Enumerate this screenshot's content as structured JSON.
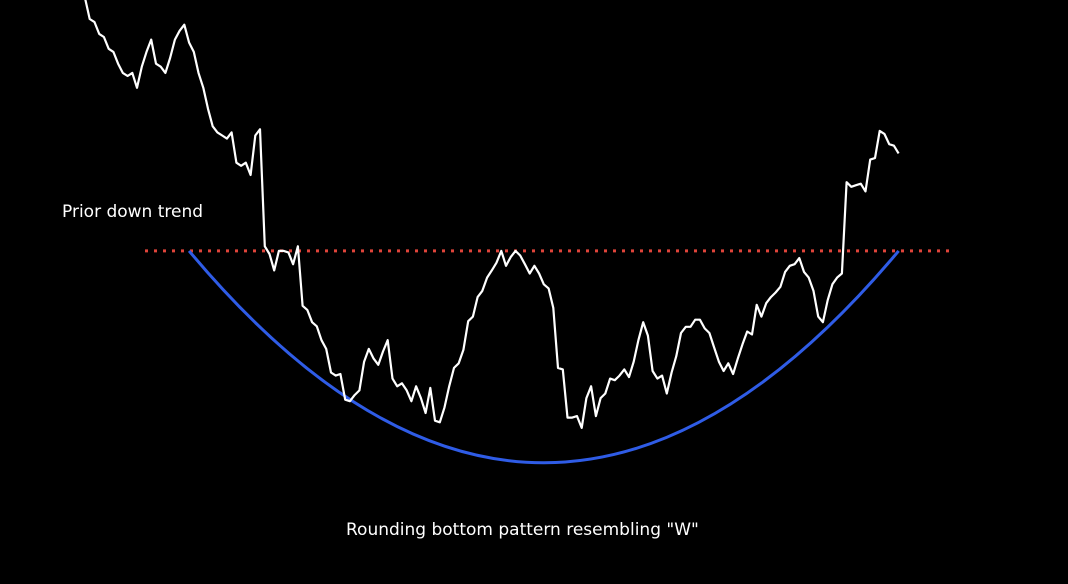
{
  "chart_data": {
    "type": "line",
    "title": "",
    "xlabel": "",
    "ylabel": "",
    "xlim": [
      0,
      178
    ],
    "ylim": [
      0,
      100
    ],
    "grid": false,
    "legend": "none",
    "colors": {
      "background": "#000000",
      "price": "#ffffff",
      "resistance": "#e0443a",
      "rounding_curve": "#2f5ce6",
      "text": "#ffffff"
    },
    "series": [
      {
        "values": [
          100.0,
          95.9,
          95.3,
          93.0,
          92.4,
          90.1,
          89.5,
          87.2,
          85.4,
          84.8,
          85.4,
          82.5,
          86.6,
          89.5,
          91.9,
          87.2,
          86.6,
          85.4,
          88.3,
          91.9,
          93.6,
          94.8,
          91.3,
          89.5,
          85.4,
          82.5,
          78.4,
          75.0,
          73.8,
          73.2,
          72.6,
          73.8,
          67.9,
          67.3,
          67.9,
          65.5,
          73.2,
          74.4,
          51.6,
          50.1,
          46.9,
          50.7,
          50.7,
          50.4,
          48.1,
          51.6,
          40.0,
          39.2,
          36.8,
          36.0,
          33.3,
          31.6,
          27.0,
          26.4,
          26.7,
          21.7,
          21.4,
          22.6,
          23.5,
          29.1,
          31.6,
          29.7,
          28.5,
          31.1,
          33.3,
          25.8,
          24.3,
          24.9,
          23.5,
          21.4,
          24.3,
          22.0,
          19.1,
          24.0,
          17.6,
          17.3,
          20.2,
          24.3,
          27.9,
          28.8,
          31.4,
          37.0,
          37.9,
          41.7,
          42.9,
          45.5,
          46.9,
          48.4,
          50.7,
          47.8,
          49.5,
          50.7,
          49.8,
          48.1,
          46.3,
          47.8,
          46.3,
          44.2,
          43.4,
          39.6,
          27.9,
          27.6,
          18.2,
          18.2,
          18.5,
          16.2,
          22.0,
          24.3,
          18.5,
          22.0,
          22.9,
          25.8,
          25.5,
          26.4,
          27.6,
          26.1,
          29.1,
          33.3,
          36.8,
          34.2,
          27.3,
          25.8,
          26.4,
          22.9,
          27.0,
          30.2,
          34.7,
          35.9,
          35.9,
          37.3,
          37.3,
          35.6,
          34.7,
          31.9,
          29.1,
          27.3,
          28.8,
          26.7,
          29.7,
          32.5,
          35.0,
          34.4,
          40.2,
          37.9,
          40.5,
          41.7,
          42.6,
          43.7,
          46.6,
          47.8,
          48.1,
          49.3,
          46.6,
          45.5,
          42.9,
          37.9,
          36.8,
          41.1,
          44.2,
          45.5,
          46.3,
          64.1,
          63.2,
          63.5,
          63.8,
          62.3,
          68.5,
          68.8,
          74.1,
          73.5,
          71.5,
          71.2,
          69.7
        ]
      }
    ],
    "resistance_level": 50.7,
    "rounding_bottom": {
      "start_x": 22,
      "end_x": 172,
      "rim_y": 50.7,
      "bottom_y": 9.4
    },
    "annotations": {
      "prior_trend": "Prior down trend",
      "pattern": "Rounding bottom pattern resembling \"W\""
    }
  }
}
